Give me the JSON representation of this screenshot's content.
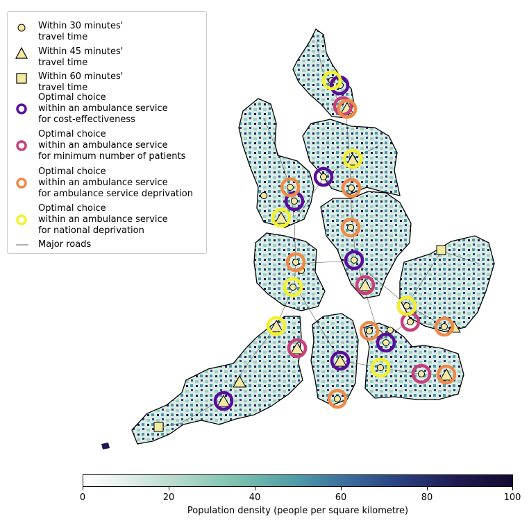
{
  "legend": {
    "items": [
      {
        "label": "Within 30 minutes'\ntravel time",
        "icon": "circle-marker-icon"
      },
      {
        "label": "Within 45 minutes'\ntravel time",
        "icon": "triangle-marker-icon"
      },
      {
        "label": "Within 60 minutes'\ntravel time",
        "icon": "square-marker-icon"
      },
      {
        "label": "Optimal choice\nwithin an ambulance service\nfor cost-effectiveness",
        "icon": "ring-icon",
        "color": "#5a0d9c"
      },
      {
        "label": "Optimal choice\nwithin an ambulance service\nfor minimum number of patients",
        "icon": "ring-icon",
        "color": "#c8407a"
      },
      {
        "label": "Optimal choice\nwithin an ambulance service\nfor ambulance service deprivation",
        "icon": "ring-icon",
        "color": "#f08a48"
      },
      {
        "label": "Optimal choice\nwithin an ambulance service\nfor national deprivation",
        "icon": "ring-icon",
        "color": "#f4f12a"
      },
      {
        "label": "Major roads",
        "icon": "road-line-icon"
      }
    ]
  },
  "colorbar": {
    "label": "Population density (people per square kilometre)",
    "ticks": [
      "0",
      "20",
      "40",
      "60",
      "80",
      "100"
    ],
    "min": 0,
    "max": 100
  },
  "colors": {
    "marker_fill": "#f3e9a2",
    "cost_effectiveness": "#5a0d9c",
    "min_patients": "#c8407a",
    "service_deprivation": "#f08a48",
    "national_deprivation": "#f4f12a",
    "region_light": "#dbece6",
    "region_dense": "#1f1b52"
  }
}
